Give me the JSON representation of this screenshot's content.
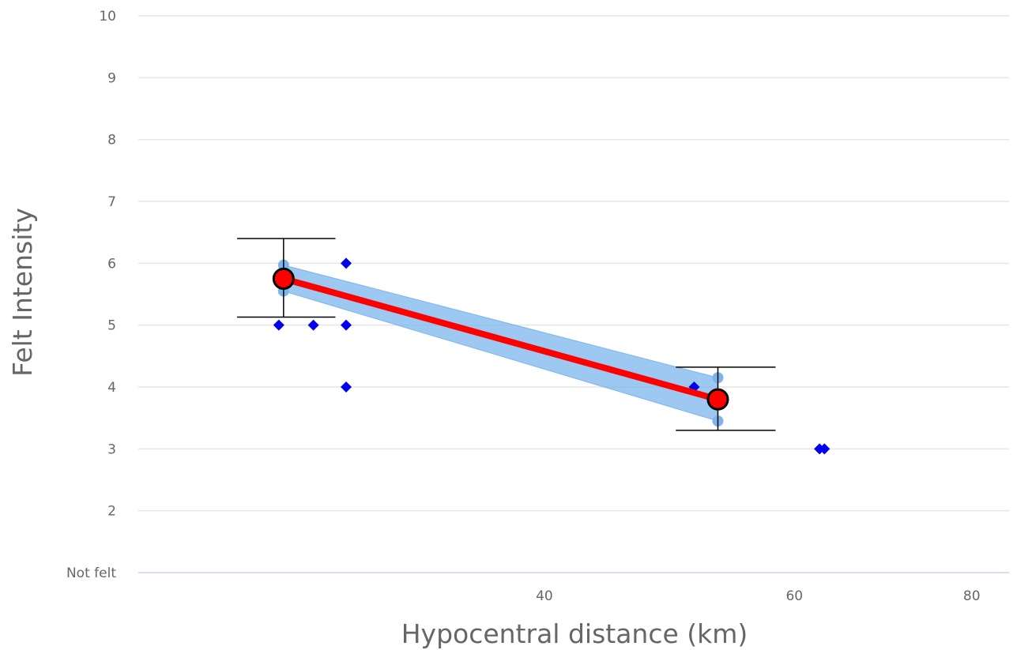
{
  "chart_data": {
    "type": "scatter",
    "xlabel": "Hypocentral distance (km)",
    "ylabel": "Felt Intensity",
    "x_scale": "log",
    "xlim": [
      20.7,
      85
    ],
    "ylim": [
      1,
      10
    ],
    "x_ticks": [
      40,
      60,
      80
    ],
    "x_tick_labels": [
      "40",
      "60",
      "80"
    ],
    "y_ticks": [
      1,
      2,
      3,
      4,
      5,
      6,
      7,
      8,
      9,
      10
    ],
    "y_tick_labels": [
      "Not felt",
      "2",
      "3",
      "4",
      "5",
      "6",
      "7",
      "8",
      "9",
      "10"
    ],
    "grid": true,
    "colors": {
      "reports": "#0000ee",
      "mean_line": "#ff0000",
      "band": "#7cb5ec",
      "mean_marker": "#ff0000",
      "error_bar": "#000000"
    },
    "series": [
      {
        "type": "scatter",
        "marker": "diamond",
        "points": [
          {
            "x": 26.0,
            "y": 5
          },
          {
            "x": 27.5,
            "y": 5
          },
          {
            "x": 29.0,
            "y": 6
          },
          {
            "x": 29.0,
            "y": 5
          },
          {
            "x": 29.0,
            "y": 4
          },
          {
            "x": 51.0,
            "y": 4
          },
          {
            "x": 62.5,
            "y": 3
          },
          {
            "x": 63.0,
            "y": 3
          }
        ]
      },
      {
        "type": "arearange",
        "points": [
          {
            "x": 26.2,
            "low": 5.55,
            "high": 5.97
          },
          {
            "x": 53.0,
            "low": 3.45,
            "high": 4.15
          }
        ]
      },
      {
        "type": "line",
        "points": [
          {
            "x": 26.2,
            "y": 5.75
          },
          {
            "x": 53.0,
            "y": 3.8
          }
        ]
      },
      {
        "type": "errorbar",
        "points": [
          {
            "x": 26.2,
            "low": 5.13,
            "high": 6.4,
            "cap_from": 24.3,
            "cap_to": 28.5
          },
          {
            "x": 53.0,
            "low": 3.3,
            "high": 4.32,
            "cap_from": 49.5,
            "cap_to": 58.2
          }
        ]
      }
    ]
  }
}
